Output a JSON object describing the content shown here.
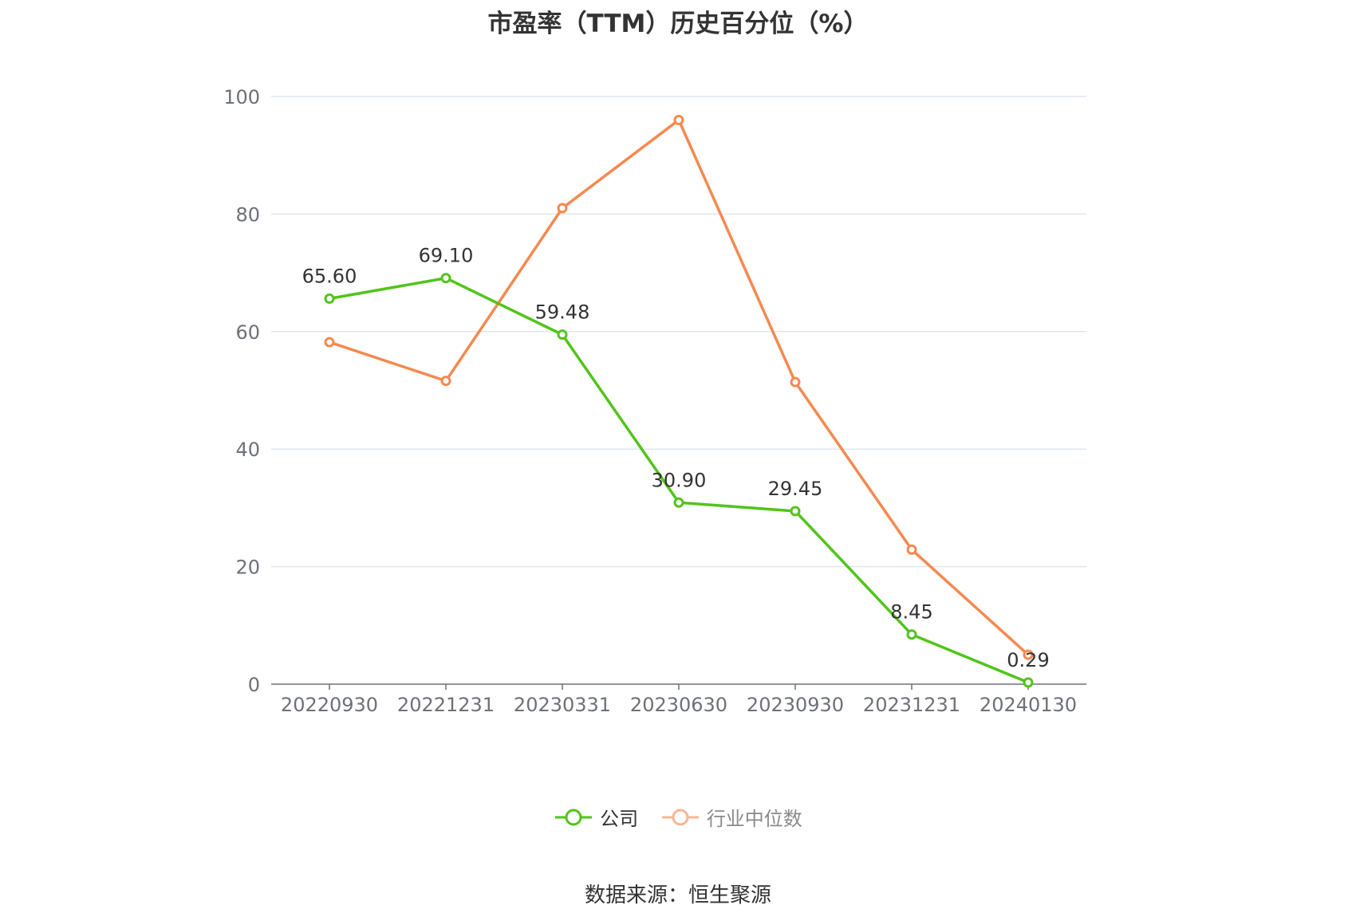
{
  "chart_data": {
    "type": "line",
    "title": "市盈率（TTM）历史百分位（%）",
    "categories": [
      "20220930",
      "20221231",
      "20230331",
      "20230630",
      "20230930",
      "20231231",
      "20240130"
    ],
    "ylim": [
      0,
      100
    ],
    "yticks": [
      0,
      20,
      40,
      60,
      80,
      100
    ],
    "grid": true,
    "legend_position": "bottom",
    "series": [
      {
        "name": "公司",
        "color": "#52c41a",
        "values": [
          65.6,
          69.1,
          59.48,
          30.9,
          29.45,
          8.45,
          0.29
        ],
        "labels": [
          "65.60",
          "69.10",
          "59.48",
          "30.90",
          "29.45",
          "8.45",
          "0.29"
        ]
      },
      {
        "name": "行业中位数",
        "color": "#f5894f",
        "values": [
          58.2,
          51.6,
          81.0,
          96.0,
          51.4,
          22.9,
          5.0
        ]
      }
    ],
    "source": "数据来源：恒生聚源"
  }
}
